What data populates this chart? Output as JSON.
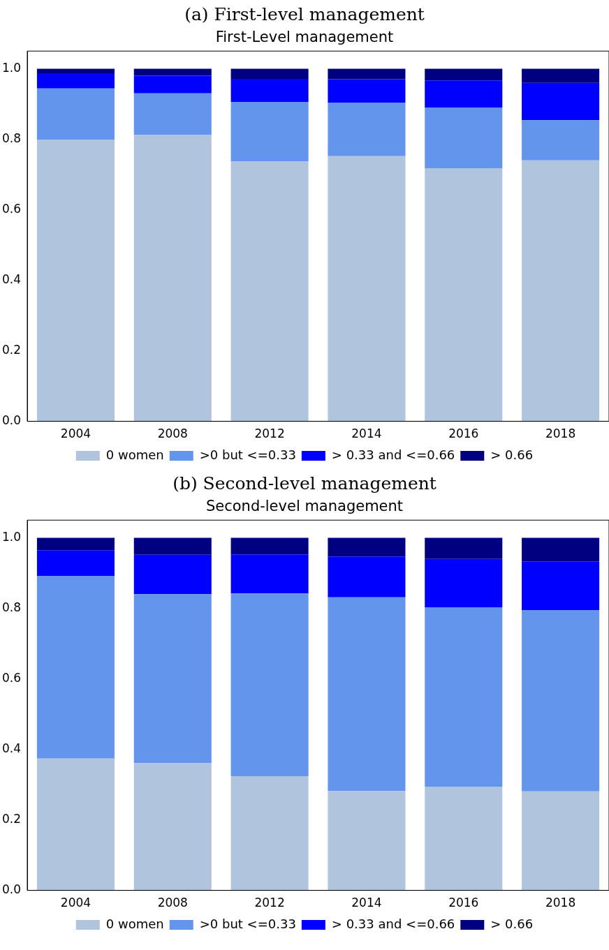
{
  "chart_data": [
    {
      "type": "bar",
      "title": "First-Level management",
      "annotations": [
        "(a) First-level management"
      ],
      "categories": [
        "2004",
        "2008",
        "2012",
        "2014",
        "2016",
        "2018"
      ],
      "stacked": true,
      "series": [
        {
          "name": "0 women",
          "color": "#b0c4de",
          "values": [
            0.798,
            0.812,
            0.737,
            0.752,
            0.718,
            0.74
          ]
        },
        {
          "name": ">0 but <=0.33",
          "color": "#6495ed",
          "values": [
            0.146,
            0.118,
            0.169,
            0.152,
            0.171,
            0.114
          ]
        },
        {
          "name": "> 0.33 and <=0.66",
          "color": "#0000ff",
          "values": [
            0.043,
            0.05,
            0.065,
            0.066,
            0.078,
            0.106
          ]
        },
        {
          "name": "> 0.66",
          "color": "#000080",
          "values": [
            0.013,
            0.02,
            0.029,
            0.03,
            0.033,
            0.04
          ]
        }
      ],
      "ylim": [
        0,
        1.05
      ],
      "yticks": [
        {
          "value": 0,
          "label": "0.0"
        },
        {
          "value": 0.2,
          "label": "0.2"
        },
        {
          "value": 0.4,
          "label": "0.4"
        },
        {
          "value": 0.6,
          "label": "0.6"
        },
        {
          "value": 0.8,
          "label": "0.8"
        },
        {
          "value": 1,
          "label": "1.0"
        }
      ],
      "legend": "bottom"
    },
    {
      "type": "bar",
      "title": "Second-level management",
      "annotations": [
        "(b) Second-level management"
      ],
      "categories": [
        "2004",
        "2008",
        "2012",
        "2014",
        "2016",
        "2018"
      ],
      "stacked": true,
      "series": [
        {
          "name": "0 women",
          "color": "#b0c4de",
          "values": [
            0.374,
            0.361,
            0.324,
            0.282,
            0.294,
            0.281
          ]
        },
        {
          "name": ">0 but <=0.33",
          "color": "#6495ed",
          "values": [
            0.517,
            0.479,
            0.518,
            0.549,
            0.508,
            0.514
          ]
        },
        {
          "name": "> 0.33 and <=0.66",
          "color": "#0000ff",
          "values": [
            0.074,
            0.112,
            0.111,
            0.116,
            0.138,
            0.138
          ]
        },
        {
          "name": "> 0.66",
          "color": "#000080",
          "values": [
            0.035,
            0.048,
            0.047,
            0.053,
            0.06,
            0.067
          ]
        }
      ],
      "ylim": [
        0,
        1.05
      ],
      "yticks": [
        {
          "value": 0,
          "label": "0.0"
        },
        {
          "value": 0.2,
          "label": "0.2"
        },
        {
          "value": 0.4,
          "label": "0.4"
        },
        {
          "value": 0.6,
          "label": "0.6"
        },
        {
          "value": 0.8,
          "label": "0.8"
        },
        {
          "value": 1,
          "label": "1.0"
        }
      ],
      "legend": "bottom"
    }
  ]
}
